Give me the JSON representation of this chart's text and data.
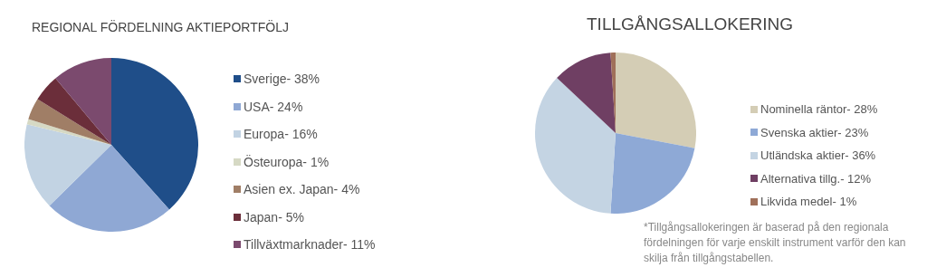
{
  "chart_data": [
    {
      "type": "pie",
      "title": "REGIONAL FÖRDELNING AKTIEPORTFÖLJ",
      "categories": [
        "Sverige- 38%",
        "USA- 24%",
        "Europa- 16%",
        "Östeuropa- 1%",
        "Asien ex. Japan- 4%",
        "Japan- 5%",
        "Tillväxtmarknader- 11%"
      ],
      "values": [
        38,
        24,
        16,
        1,
        4,
        5,
        11
      ],
      "colors": [
        "#1f4e89",
        "#8fa8d4",
        "#c2d3e3",
        "#d6d9c4",
        "#a07e66",
        "#6b2e3a",
        "#7b4a6e"
      ],
      "legend": "right"
    },
    {
      "type": "pie",
      "title": "TILLGÅNGSALLOKERING",
      "categories": [
        "Nominella räntor- 28%",
        "Svenska aktier- 23%",
        "Utländska aktier- 36%",
        "Alternativa tillg.- 12%",
        "Likvida medel- 1%"
      ],
      "values": [
        28,
        23,
        36,
        12,
        1
      ],
      "colors": [
        "#d4cdb5",
        "#8ea9d6",
        "#c4d4e3",
        "#6f3f63",
        "#a0705a"
      ],
      "legend": "right",
      "annotations": [
        "*Tillgångsallokeringen  är baserad på den regionala fördelningen för varje enskilt instrument varför den kan skilja från tillgångstabellen."
      ]
    }
  ]
}
